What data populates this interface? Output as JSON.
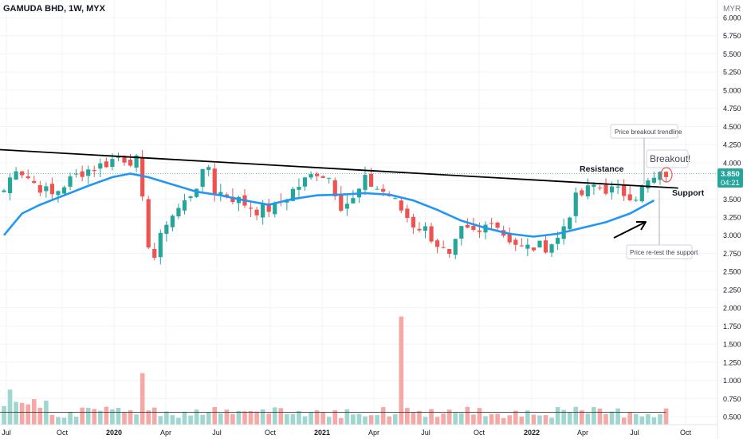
{
  "header": {
    "title": "GAMUDA BHD, 1W, MYX",
    "currency": "MYR"
  },
  "price_badge": {
    "price": "3.850",
    "countdown": "04:21"
  },
  "colors": {
    "up": "#26a69a",
    "down": "#ef5350",
    "vol_up": "#9fd6cf",
    "vol_down": "#f5a8a5",
    "ma": "#2196f3",
    "badge": "#26a69a",
    "grid": "#f0f3fa"
  },
  "annotations": {
    "resistance": "Resistance",
    "support": "Support",
    "breakout": "Breakout!",
    "trendline_note": "Price breakout trendline",
    "retest_note": "Price re-test the support"
  },
  "chart_data": {
    "type": "candlestick",
    "title": "GAMUDA BHD, 1W, MYX",
    "ylabel": "MYR",
    "ylim": [
      0.3,
      6.0
    ],
    "y_ticks": [
      "6.000",
      "5.750",
      "5.500",
      "5.250",
      "5.000",
      "4.750",
      "4.500",
      "4.250",
      "4.000",
      "3.750",
      "3.500",
      "3.250",
      "3.000",
      "2.750",
      "2.500",
      "2.250",
      "2.000",
      "1.750",
      "1.500",
      "1.250",
      "1.000",
      "0.750",
      "0.500"
    ],
    "x_ticks": [
      "Jul",
      "Oct",
      "2020",
      "Apr",
      "Jul",
      "Oct",
      "2021",
      "Apr",
      "Jul",
      "Oct",
      "2022",
      "Apr",
      "Jul",
      "Oct"
    ],
    "anchors": [
      {
        "w": 0,
        "p": 3.62
      },
      {
        "w": 2,
        "p": 3.95
      },
      {
        "w": 5,
        "p": 3.72
      },
      {
        "w": 8,
        "p": 3.55
      },
      {
        "w": 10,
        "p": 3.7
      },
      {
        "w": 13,
        "p": 3.88
      },
      {
        "w": 16,
        "p": 3.96
      },
      {
        "w": 19,
        "p": 4.08
      },
      {
        "w": 22,
        "p": 4.02
      },
      {
        "w": 23,
        "p": 3.45
      },
      {
        "w": 24,
        "p": 2.9
      },
      {
        "w": 25,
        "p": 2.7
      },
      {
        "w": 27,
        "p": 3.2
      },
      {
        "w": 30,
        "p": 3.45
      },
      {
        "w": 32,
        "p": 3.7
      },
      {
        "w": 34,
        "p": 3.95
      },
      {
        "w": 35,
        "p": 3.62
      },
      {
        "w": 38,
        "p": 3.52
      },
      {
        "w": 42,
        "p": 3.35
      },
      {
        "w": 45,
        "p": 3.38
      },
      {
        "w": 48,
        "p": 3.62
      },
      {
        "w": 52,
        "p": 3.88
      },
      {
        "w": 54,
        "p": 3.8
      },
      {
        "w": 56,
        "p": 3.42
      },
      {
        "w": 58,
        "p": 3.48
      },
      {
        "w": 60,
        "p": 3.75
      },
      {
        "w": 64,
        "p": 3.55
      },
      {
        "w": 66,
        "p": 3.35
      },
      {
        "w": 68,
        "p": 3.15
      },
      {
        "w": 70,
        "p": 3.08
      },
      {
        "w": 72,
        "p": 2.88
      },
      {
        "w": 74,
        "p": 2.68
      },
      {
        "w": 76,
        "p": 3.05
      },
      {
        "w": 79,
        "p": 3.02
      },
      {
        "w": 81,
        "p": 3.25
      },
      {
        "w": 83,
        "p": 3.02
      },
      {
        "w": 86,
        "p": 2.82
      },
      {
        "w": 90,
        "p": 2.85
      },
      {
        "w": 92,
        "p": 2.95
      },
      {
        "w": 95,
        "p": 3.5
      },
      {
        "w": 98,
        "p": 3.68
      },
      {
        "w": 102,
        "p": 3.6
      },
      {
        "w": 105,
        "p": 3.55
      },
      {
        "w": 107,
        "p": 3.72
      },
      {
        "w": 110,
        "p": 3.85
      }
    ],
    "moving_average": [
      {
        "w": 0,
        "p": 3.0
      },
      {
        "w": 3,
        "p": 3.3
      },
      {
        "w": 6,
        "p": 3.42
      },
      {
        "w": 10,
        "p": 3.55
      },
      {
        "w": 14,
        "p": 3.68
      },
      {
        "w": 18,
        "p": 3.8
      },
      {
        "w": 21,
        "p": 3.85
      },
      {
        "w": 24,
        "p": 3.8
      },
      {
        "w": 28,
        "p": 3.7
      },
      {
        "w": 32,
        "p": 3.6
      },
      {
        "w": 36,
        "p": 3.55
      },
      {
        "w": 40,
        "p": 3.48
      },
      {
        "w": 44,
        "p": 3.42
      },
      {
        "w": 48,
        "p": 3.5
      },
      {
        "w": 52,
        "p": 3.55
      },
      {
        "w": 56,
        "p": 3.56
      },
      {
        "w": 60,
        "p": 3.58
      },
      {
        "w": 64,
        "p": 3.56
      },
      {
        "w": 68,
        "p": 3.48
      },
      {
        "w": 72,
        "p": 3.35
      },
      {
        "w": 76,
        "p": 3.2
      },
      {
        "w": 80,
        "p": 3.1
      },
      {
        "w": 84,
        "p": 3.02
      },
      {
        "w": 88,
        "p": 2.98
      },
      {
        "w": 92,
        "p": 3.02
      },
      {
        "w": 96,
        "p": 3.1
      },
      {
        "w": 100,
        "p": 3.18
      },
      {
        "w": 104,
        "p": 3.3
      },
      {
        "w": 108,
        "p": 3.48
      }
    ],
    "trendline": [
      {
        "w": -5,
        "p": 4.2
      },
      {
        "w": 112,
        "p": 3.65
      }
    ],
    "volume_spikes": [
      {
        "w": 23,
        "v": 1.1
      },
      {
        "w": 66,
        "v": 1.88
      }
    ]
  }
}
